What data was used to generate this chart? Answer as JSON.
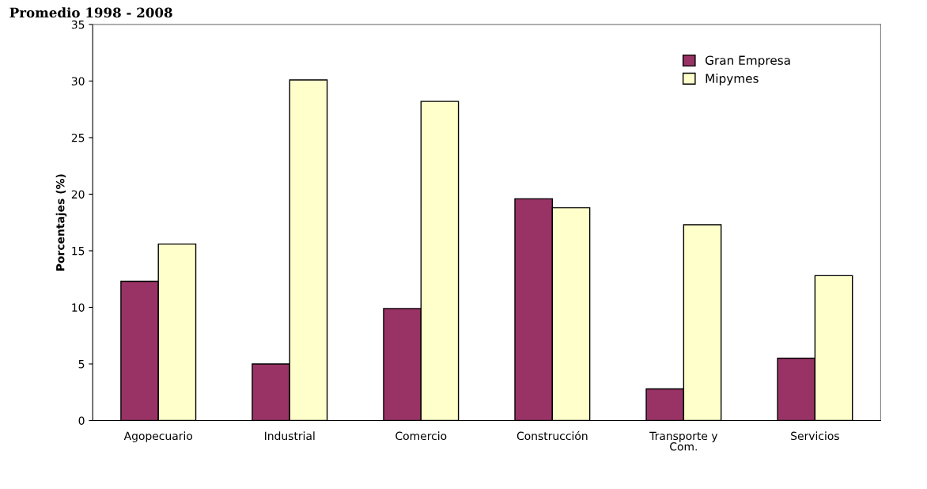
{
  "chart_data": {
    "type": "bar",
    "title": "Promedio 1998 - 2008",
    "ylabel": "Porcentajes (%)",
    "categories": [
      "Agopecuario",
      "Industrial",
      "Comercio",
      "Construcción",
      "Transporte y\nCom.",
      "Servicios"
    ],
    "series": [
      {
        "name": "Gran Empresa",
        "color": "#993366",
        "values": [
          12.3,
          5.0,
          9.9,
          19.6,
          2.8,
          5.5
        ]
      },
      {
        "name": "Mipymes",
        "color": "#ffffcc",
        "values": [
          15.6,
          30.1,
          28.2,
          18.8,
          17.3,
          12.8
        ]
      }
    ],
    "ylim": [
      0,
      35
    ],
    "yticks": [
      0,
      5,
      10,
      15,
      20,
      25,
      30,
      35
    ],
    "grid": false,
    "legend": "top right"
  }
}
